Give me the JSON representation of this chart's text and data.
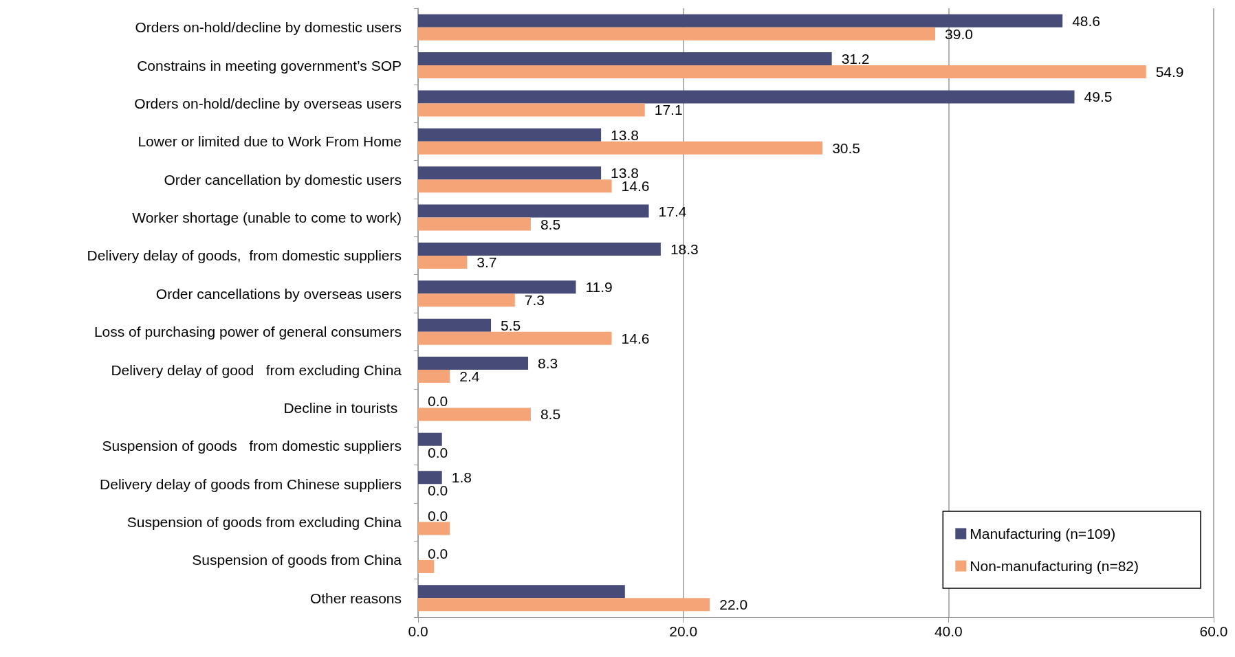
{
  "chart_data": {
    "type": "bar",
    "orientation": "horizontal",
    "categories": [
      "Orders on-hold/decline by domestic users",
      "Constrains in meeting government’s SOP",
      "Orders on-hold/decline by overseas users",
      "Lower or limited due to Work From Home",
      "Order cancellation by domestic users",
      "Worker shortage (unable to come to work)",
      "Delivery delay of goods,  from domestic suppliers",
      "Order cancellations by overseas users",
      "Loss of purchasing power of general consumers",
      "Delivery delay of good   from excluding China",
      "Decline in tourists ",
      "Suspension of goods   from domestic suppliers",
      "Delivery delay of goods from Chinese suppliers",
      "Suspension of goods from excluding China",
      "Suspension of goods from China",
      "Other reasons"
    ],
    "series": [
      {
        "name": "Manufacturing (n=109)",
        "color": "#474b78",
        "values": [
          48.6,
          31.2,
          49.5,
          13.8,
          13.8,
          17.4,
          18.3,
          11.9,
          5.5,
          8.3,
          0.0,
          1.8,
          1.8,
          0.0,
          0.0,
          15.6
        ],
        "value_labels": [
          "48.6",
          "31.2",
          "49.5",
          "13.8",
          "13.8",
          "17.4",
          "18.3",
          "11.9",
          "5.5",
          "8.3",
          "0.0",
          null,
          "1.8",
          "0.0",
          "0.0",
          null
        ]
      },
      {
        "name": "Non-manufacturing (n=82)",
        "color": "#f4a477",
        "values": [
          39.0,
          54.9,
          17.1,
          30.5,
          14.6,
          8.5,
          3.7,
          7.3,
          14.6,
          2.4,
          8.5,
          0.0,
          0.0,
          2.4,
          1.2,
          22.0
        ],
        "value_labels": [
          "39.0",
          "54.9",
          "17.1",
          "30.5",
          "14.6",
          "8.5",
          "3.7",
          "7.3",
          "14.6",
          "2.4",
          "8.5",
          "0.0",
          "0.0",
          null,
          null,
          "22.0"
        ]
      }
    ],
    "xlim": [
      0,
      60
    ],
    "xticks": [
      {
        "value": 0,
        "label": "0.0"
      },
      {
        "value": 20,
        "label": "20.0"
      },
      {
        "value": 40,
        "label": "40.0"
      },
      {
        "value": 60,
        "label": "60.0"
      }
    ],
    "grid": "x",
    "legend": "bottom right"
  }
}
